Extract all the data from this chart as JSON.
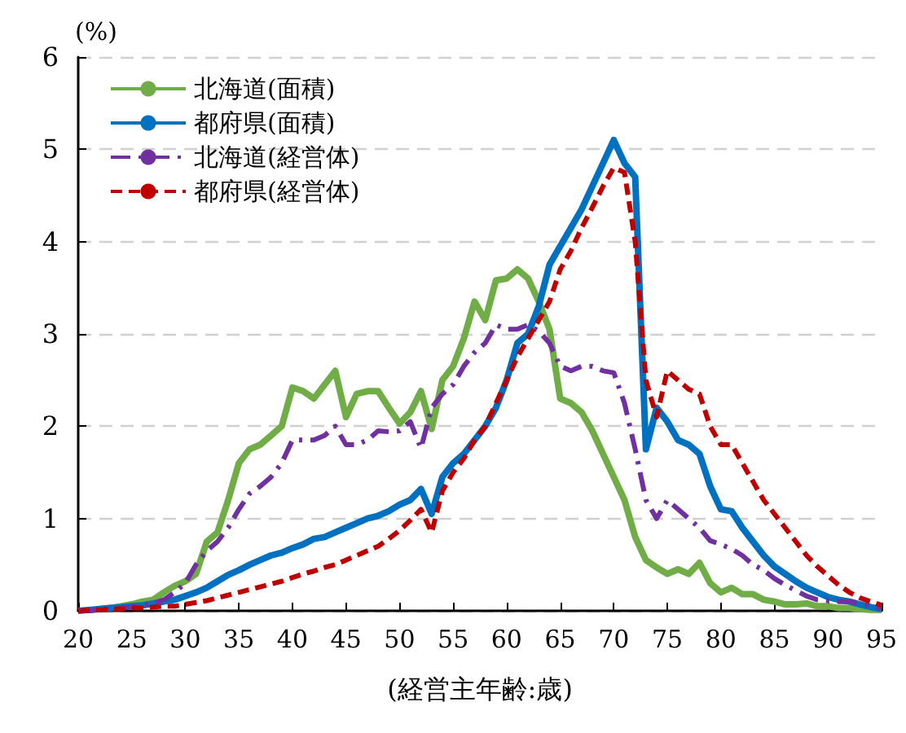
{
  "chart_data": {
    "type": "line",
    "xlabel": "(経営主年齢:歳)",
    "ylabel": "(%)",
    "x": [
      20,
      21,
      22,
      23,
      24,
      25,
      26,
      27,
      28,
      29,
      30,
      31,
      32,
      33,
      34,
      35,
      36,
      37,
      38,
      39,
      40,
      41,
      42,
      43,
      44,
      45,
      46,
      47,
      48,
      49,
      50,
      51,
      52,
      53,
      54,
      55,
      56,
      57,
      58,
      59,
      60,
      61,
      62,
      63,
      64,
      65,
      66,
      67,
      68,
      69,
      70,
      71,
      72,
      73,
      74,
      75,
      76,
      77,
      78,
      79,
      80,
      81,
      82,
      83,
      84,
      85,
      86,
      87,
      88,
      89,
      90,
      91,
      92,
      93,
      94,
      95
    ],
    "series": [
      {
        "name": "北海道(面積)",
        "color": "#70ad47",
        "line_style": "solid",
        "values": [
          null,
          null,
          0.02,
          0.03,
          0.05,
          0.07,
          0.1,
          0.12,
          0.2,
          0.27,
          0.32,
          0.4,
          0.75,
          0.85,
          1.2,
          1.6,
          1.75,
          1.8,
          1.9,
          2.0,
          2.42,
          2.38,
          2.3,
          2.45,
          2.6,
          2.1,
          2.35,
          2.38,
          2.38,
          2.2,
          2.03,
          2.15,
          2.38,
          1.97,
          2.5,
          2.65,
          2.95,
          3.35,
          3.15,
          3.58,
          3.6,
          3.7,
          3.6,
          3.35,
          3.05,
          2.3,
          2.25,
          2.15,
          1.95,
          1.7,
          1.45,
          1.2,
          0.8,
          0.55,
          0.47,
          0.4,
          0.45,
          0.4,
          0.52,
          0.3,
          0.2,
          0.25,
          0.18,
          0.18,
          0.12,
          0.1,
          0.07,
          0.07,
          0.08,
          0.05,
          0.05,
          0.03,
          0.03,
          0.02,
          0.01,
          0.01
        ]
      },
      {
        "name": "都府県(面積)",
        "color": "#0070c0",
        "line_style": "solid",
        "values": [
          0,
          0.01,
          0.02,
          0.03,
          0.04,
          0.05,
          0.06,
          0.08,
          0.1,
          0.12,
          0.16,
          0.2,
          0.25,
          0.32,
          0.39,
          0.44,
          0.5,
          0.55,
          0.6,
          0.63,
          0.68,
          0.72,
          0.78,
          0.8,
          0.85,
          0.9,
          0.95,
          1.0,
          1.03,
          1.08,
          1.15,
          1.2,
          1.32,
          1.05,
          1.45,
          1.6,
          1.7,
          1.85,
          2.0,
          2.2,
          2.5,
          2.9,
          3.0,
          3.3,
          3.75,
          3.95,
          4.15,
          4.35,
          4.6,
          4.85,
          5.1,
          4.85,
          4.7,
          1.75,
          2.2,
          2.05,
          1.85,
          1.8,
          1.7,
          1.35,
          1.1,
          1.08,
          0.9,
          0.75,
          0.6,
          0.48,
          0.4,
          0.32,
          0.25,
          0.2,
          0.15,
          0.12,
          0.1,
          0.07,
          0.04,
          0.02
        ]
      },
      {
        "name": "北海道(経営体)",
        "color": "#7030a0",
        "line_style": "dashdot",
        "values": [
          0,
          0,
          0.01,
          0.02,
          0.03,
          0.04,
          0.06,
          0.08,
          0.12,
          0.2,
          0.3,
          0.5,
          0.65,
          0.75,
          0.9,
          1.1,
          1.27,
          1.35,
          1.45,
          1.6,
          1.85,
          1.85,
          1.85,
          1.9,
          2.0,
          1.8,
          1.8,
          1.85,
          1.95,
          1.94,
          1.95,
          2.05,
          1.76,
          2.2,
          2.35,
          2.45,
          2.65,
          2.8,
          2.9,
          3.1,
          3.05,
          3.05,
          3.1,
          3.03,
          2.9,
          2.65,
          2.6,
          2.65,
          2.65,
          2.6,
          2.58,
          2.25,
          1.75,
          1.2,
          1.0,
          1.2,
          1.1,
          1.0,
          0.9,
          0.76,
          0.72,
          0.67,
          0.6,
          0.5,
          0.44,
          0.35,
          0.28,
          0.22,
          0.16,
          0.12,
          0.11,
          0.1,
          0.1,
          0.08,
          0.05,
          0.03
        ]
      },
      {
        "name": "都府県(経営体)",
        "color": "#c00000",
        "line_style": "dashed",
        "values": [
          0,
          0.01,
          0.01,
          0.02,
          0.02,
          0.03,
          0.03,
          0.04,
          0.05,
          0.05,
          0.07,
          0.09,
          0.11,
          0.14,
          0.17,
          0.2,
          0.23,
          0.26,
          0.29,
          0.32,
          0.36,
          0.4,
          0.43,
          0.47,
          0.5,
          0.55,
          0.6,
          0.65,
          0.7,
          0.78,
          0.87,
          0.98,
          1.1,
          0.85,
          1.3,
          1.5,
          1.65,
          1.85,
          2.0,
          2.25,
          2.5,
          2.75,
          2.95,
          3.15,
          3.35,
          3.7,
          3.9,
          4.15,
          4.37,
          4.6,
          4.8,
          4.75,
          4.0,
          2.5,
          2.1,
          2.6,
          2.5,
          2.4,
          2.35,
          2.0,
          1.8,
          1.8,
          1.6,
          1.4,
          1.2,
          1.05,
          0.9,
          0.75,
          0.6,
          0.48,
          0.38,
          0.28,
          0.2,
          0.14,
          0.1,
          0.06
        ]
      }
    ],
    "xlim": [
      20,
      95
    ],
    "xticks": [
      20,
      25,
      30,
      35,
      40,
      45,
      50,
      55,
      60,
      65,
      70,
      75,
      80,
      85,
      90,
      95
    ],
    "ylim": [
      0,
      6
    ],
    "yticks": [
      0,
      1,
      2,
      3,
      4,
      5,
      6
    ],
    "grid": "y",
    "legend": "top left",
    "marker": "none"
  }
}
